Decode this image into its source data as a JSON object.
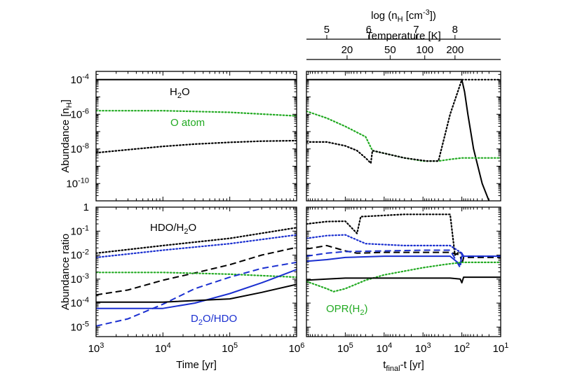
{
  "chart_data": [
    {
      "type": "line",
      "panel": "top-left",
      "ylabel": "Abundance [n_H]",
      "xscale": "log",
      "yscale": "log",
      "xlim": [
        1000,
        1000000
      ],
      "ylim": [
        1e-11,
        0.0003
      ],
      "yticks": [
        0.0001,
        1e-06,
        1e-08,
        1e-10
      ],
      "ytick_labels": [
        {
          "base": "10",
          "exp": "-4"
        },
        {
          "base": "10",
          "exp": "-6"
        },
        {
          "base": "10",
          "exp": "-8"
        },
        {
          "base": "10",
          "exp": "-10"
        }
      ],
      "annotations": [
        {
          "base": "H",
          "sub": "2",
          "rest": "O",
          "color": "#000000"
        },
        {
          "text": "O atom",
          "color": "#22aa22"
        }
      ],
      "series": [
        {
          "color": "#000000",
          "style": "solid",
          "x": [
            1000,
            1000000
          ],
          "y": [
            0.0001,
            0.0001
          ]
        },
        {
          "color": "#22aa22",
          "style": "dotted",
          "x": [
            1000,
            10000,
            100000,
            1000000
          ],
          "y": [
            1.6e-06,
            1.6e-06,
            1.3e-06,
            8e-07
          ]
        },
        {
          "color": "#000000",
          "style": "dotted",
          "x": [
            1000,
            3000,
            10000,
            30000,
            100000,
            300000,
            1000000
          ],
          "y": [
            6e-09,
            9e-09,
            1.4e-08,
            1.9e-08,
            2.4e-08,
            2.8e-08,
            3e-08
          ]
        }
      ]
    },
    {
      "type": "line",
      "panel": "top-right",
      "xscale": "log-reversed",
      "yscale": "log",
      "xlim": [
        1000000,
        10
      ],
      "ylim": [
        1e-11,
        0.0003
      ],
      "top_axes": [
        {
          "label": {
            "text": "log (n",
            "sub": "H",
            "mid": " [cm",
            "sup": "-3",
            "end": "])"
          },
          "ticks": [
            {
              "label": "5",
              "x": 300000
            },
            {
              "label": "6",
              "x": 25000
            },
            {
              "label": "7",
              "x": 1500
            },
            {
              "label": "8",
              "x": 150
            }
          ]
        },
        {
          "label": "Temperature [K]",
          "ticks": [
            {
              "label": "20",
              "x": 90000
            },
            {
              "label": "50",
              "x": 7000
            },
            {
              "label": "100",
              "x": 900
            },
            {
              "label": "200",
              "x": 150
            }
          ]
        }
      ],
      "series": [
        {
          "color": "#000000",
          "style": "solid",
          "x": [
            1000000,
            1000,
            200,
            100,
            85,
            70,
            50,
            30,
            20
          ],
          "y": [
            0.0001,
            0.0001,
            0.0001,
            0.0001,
            2e-05,
            1e-06,
            1e-08,
            1e-10,
            1e-11
          ]
        },
        {
          "color": "#22aa22",
          "style": "dotted",
          "x": [
            1000000,
            300000,
            100000,
            30000,
            20000,
            3000,
            1000,
            400,
            200,
            100,
            50,
            10
          ],
          "y": [
            1.5e-06,
            6e-07,
            2e-07,
            5e-08,
            8e-09,
            3e-09,
            2e-09,
            2e-09,
            2.5e-09,
            3e-09,
            3e-09,
            3e-09
          ]
        },
        {
          "color": "#000000",
          "style": "dotted",
          "x": [
            1000000,
            300000,
            100000,
            50000,
            30000,
            22000,
            20000,
            3000,
            800,
            400,
            200,
            100,
            10
          ],
          "y": [
            2.5e-08,
            2.5e-08,
            1.5e-08,
            8e-09,
            3e-09,
            1.5e-09,
            8e-09,
            3e-09,
            2e-09,
            2e-09,
            1e-06,
            0.0001,
            0.0001
          ]
        }
      ]
    },
    {
      "type": "line",
      "panel": "bottom-left",
      "xlabel": "Time [yr]",
      "ylabel": "Abundance ratio",
      "xscale": "log",
      "yscale": "log",
      "xlim": [
        1000,
        1000000
      ],
      "ylim": [
        4e-06,
        1
      ],
      "xticks": [
        1000,
        10000,
        100000,
        1000000
      ],
      "xtick_labels": [
        {
          "base": "10",
          "exp": "3"
        },
        {
          "base": "10",
          "exp": "4"
        },
        {
          "base": "10",
          "exp": "5"
        },
        {
          "base": "10",
          "exp": "6"
        }
      ],
      "yticks": [
        1,
        0.1,
        0.01,
        0.001,
        0.0001,
        1e-05
      ],
      "ytick_labels": [
        {
          "base": "1",
          "exp": ""
        },
        {
          "base": "10",
          "exp": "-1"
        },
        {
          "base": "10",
          "exp": "-2"
        },
        {
          "base": "10",
          "exp": "-3"
        },
        {
          "base": "10",
          "exp": "-4"
        },
        {
          "base": "10",
          "exp": "-5"
        }
      ],
      "annotations": [
        {
          "text": "HDO/H",
          "sub": "2",
          "rest": "O",
          "color": "#000000"
        },
        {
          "base": "D",
          "sub": "2",
          "rest": "O/HDO",
          "color": "#1a2fd0"
        }
      ],
      "series": [
        {
          "color": "#000000",
          "style": "dotted",
          "x": [
            1000,
            10000,
            100000,
            1000000
          ],
          "y": [
            0.012,
            0.025,
            0.05,
            0.14
          ]
        },
        {
          "color": "#1a2fd0",
          "style": "dotted",
          "x": [
            1000,
            10000,
            100000,
            1000000
          ],
          "y": [
            0.008,
            0.016,
            0.03,
            0.07
          ]
        },
        {
          "color": "#000000",
          "style": "dashed",
          "x": [
            1000,
            3000,
            10000,
            30000,
            100000,
            300000,
            1000000
          ],
          "y": [
            0.00022,
            0.00035,
            0.0009,
            0.0018,
            0.004,
            0.01,
            0.021
          ]
        },
        {
          "color": "#22aa22",
          "style": "dotted",
          "x": [
            1000,
            10000,
            100000,
            1000000
          ],
          "y": [
            0.0019,
            0.0019,
            0.0016,
            0.0012
          ]
        },
        {
          "color": "#1a2fd0",
          "style": "dashed",
          "x": [
            1000,
            3000,
            10000,
            30000,
            100000,
            300000,
            1000000
          ],
          "y": [
            1.1e-05,
            2.2e-05,
            9e-05,
            0.0004,
            0.0012,
            0.0028,
            0.005
          ]
        },
        {
          "color": "#1a2fd0",
          "style": "solid",
          "x": [
            1000,
            10000,
            30000,
            100000,
            300000,
            1000000
          ],
          "y": [
            6e-05,
            6e-05,
            0.0001,
            0.00025,
            0.0007,
            0.0025
          ]
        },
        {
          "color": "#000000",
          "style": "solid",
          "x": [
            1000,
            10000,
            100000,
            300000,
            1000000
          ],
          "y": [
            0.00011,
            0.00011,
            0.00015,
            0.00028,
            0.0006
          ]
        }
      ]
    },
    {
      "type": "line",
      "panel": "bottom-right",
      "xlabel": {
        "text": "t",
        "sub": "final",
        "rest": "-t [yr]"
      },
      "xscale": "log-reversed",
      "yscale": "log",
      "xlim": [
        1000000,
        10
      ],
      "ylim": [
        4e-06,
        1
      ],
      "xticks": [
        100000,
        10000,
        1000,
        100,
        10
      ],
      "xtick_labels": [
        {
          "base": "10",
          "exp": "5"
        },
        {
          "base": "10",
          "exp": "4"
        },
        {
          "base": "10",
          "exp": "3"
        },
        {
          "base": "10",
          "exp": "2"
        },
        {
          "base": "10",
          "exp": "1"
        }
      ],
      "annotations": [
        {
          "text": "OPR(H",
          "sub": "2",
          "rest": ")",
          "color": "#22aa22"
        }
      ],
      "series": [
        {
          "color": "#000000",
          "style": "dotted",
          "x": [
            1000000,
            300000,
            100000,
            50000,
            40000,
            3000,
            200,
            150,
            120,
            100
          ],
          "y": [
            0.2,
            0.25,
            0.26,
            0.08,
            0.4,
            0.5,
            0.5,
            0.01,
            0.013,
            0.012
          ]
        },
        {
          "color": "#1a2fd0",
          "style": "dotted",
          "x": [
            1000000,
            300000,
            100000,
            30000,
            3000,
            200,
            100
          ],
          "y": [
            0.05,
            0.065,
            0.07,
            0.03,
            0.025,
            0.025,
            0.012
          ]
        },
        {
          "color": "#000000",
          "style": "dashed",
          "x": [
            1000000,
            300000,
            100000,
            50000,
            10000,
            1000,
            200,
            110,
            100,
            90,
            10
          ],
          "y": [
            0.018,
            0.025,
            0.015,
            0.012,
            0.013,
            0.013,
            0.013,
            0.01,
            0.004,
            0.008,
            0.008
          ]
        },
        {
          "color": "#1a2fd0",
          "style": "dashed",
          "x": [
            1000000,
            300000,
            100000,
            10000,
            1000,
            200,
            110,
            100,
            90,
            10
          ],
          "y": [
            0.009,
            0.012,
            0.014,
            0.015,
            0.016,
            0.016,
            0.003,
            0.012,
            0.009,
            0.009
          ]
        },
        {
          "color": "#1a2fd0",
          "style": "solid",
          "x": [
            1000000,
            300000,
            100000,
            10000,
            1000,
            200,
            110,
            100,
            90,
            10
          ],
          "y": [
            0.0055,
            0.0065,
            0.008,
            0.009,
            0.009,
            0.009,
            0.004,
            0.009,
            0.009,
            0.009
          ]
        },
        {
          "color": "#22aa22",
          "style": "dotted",
          "x": [
            1000000,
            300000,
            200000,
            100000,
            30000,
            10000,
            1000,
            300,
            100,
            10
          ],
          "y": [
            0.0008,
            0.0004,
            0.0003,
            0.0004,
            0.0009,
            0.0015,
            0.003,
            0.004,
            0.005,
            0.005
          ]
        },
        {
          "color": "#000000",
          "style": "solid",
          "x": [
            1000000,
            300000,
            100000,
            10000,
            1000,
            200,
            110,
            100,
            90,
            10
          ],
          "y": [
            0.0009,
            0.001,
            0.0011,
            0.0011,
            0.0011,
            0.0011,
            0.001,
            0.0007,
            0.0012,
            0.0012
          ]
        }
      ]
    }
  ]
}
